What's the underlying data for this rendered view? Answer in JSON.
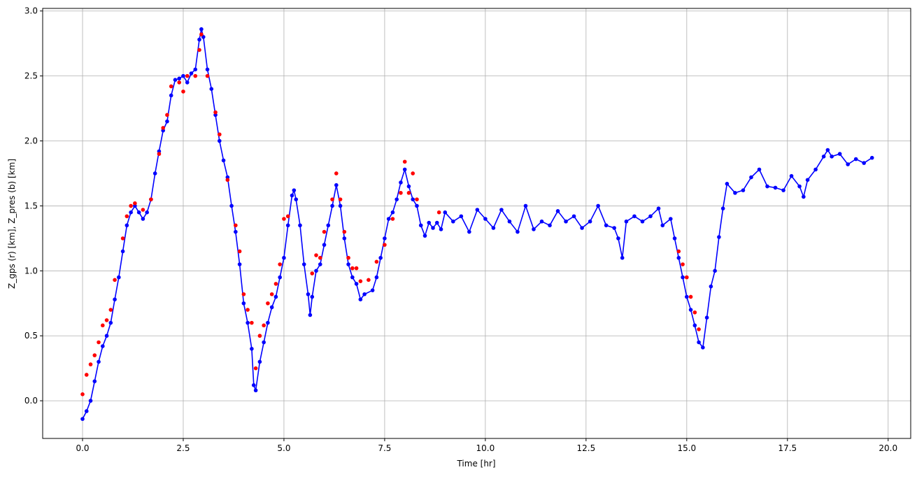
{
  "chart_data": {
    "type": "line",
    "xlabel": "Time [hr]",
    "ylabel": "Z_gps (r) [km], Z_pres (b) [km]",
    "xlim": [
      -0.99,
      20.56
    ],
    "ylim": [
      -0.29,
      3.02
    ],
    "xticks": [
      {
        "value": 0,
        "label": "0.0"
      },
      2.5,
      {
        "value": 5,
        "label": "5.0"
      },
      7.5,
      {
        "value": 10,
        "label": "10.0"
      },
      12.5,
      {
        "value": 15,
        "label": "15.0"
      },
      17.5,
      {
        "value": 20,
        "label": "20.0"
      }
    ],
    "yticks": [
      {
        "value": 0,
        "label": "0.0"
      },
      0.5,
      {
        "value": 1,
        "label": "1.0"
      },
      1.5,
      {
        "value": 2,
        "label": "2.0"
      },
      2.5,
      {
        "value": 3,
        "label": "3.0"
      }
    ],
    "grid": true,
    "series": [
      {
        "color": "#0000ff",
        "linestyle": "solid",
        "marker": "circle",
        "x": [
          0.0,
          0.1,
          0.2,
          0.3,
          0.4,
          0.5,
          0.6,
          0.7,
          0.8,
          0.9,
          1.0,
          1.1,
          1.2,
          1.3,
          1.4,
          1.5,
          1.6,
          1.7,
          1.8,
          1.9,
          2.0,
          2.1,
          2.2,
          2.3,
          2.4,
          2.5,
          2.6,
          2.7,
          2.8,
          2.9,
          2.95,
          3.0,
          3.1,
          3.2,
          3.3,
          3.4,
          3.5,
          3.6,
          3.7,
          3.8,
          3.9,
          4.0,
          4.1,
          4.2,
          4.25,
          4.3,
          4.4,
          4.5,
          4.6,
          4.7,
          4.8,
          4.9,
          5.0,
          5.1,
          5.2,
          5.25,
          5.3,
          5.4,
          5.5,
          5.6,
          5.65,
          5.7,
          5.8,
          5.9,
          6.0,
          6.1,
          6.2,
          6.3,
          6.4,
          6.5,
          6.6,
          6.7,
          6.8,
          6.9,
          7.0,
          7.2,
          7.3,
          7.4,
          7.5,
          7.6,
          7.7,
          7.8,
          7.9,
          8.0,
          8.1,
          8.2,
          8.3,
          8.4,
          8.5,
          8.6,
          8.7,
          8.8,
          8.9,
          9.0,
          9.2,
          9.4,
          9.6,
          9.8,
          10.0,
          10.2,
          10.4,
          10.6,
          10.8,
          11.0,
          11.2,
          11.4,
          11.6,
          11.8,
          12.0,
          12.2,
          12.4,
          12.6,
          12.8,
          13.0,
          13.2,
          13.3,
          13.4,
          13.5,
          13.7,
          13.9,
          14.1,
          14.3,
          14.4,
          14.6,
          14.7,
          14.8,
          14.9,
          15.0,
          15.1,
          15.2,
          15.3,
          15.4,
          15.5,
          15.6,
          15.7,
          15.8,
          15.9,
          16.0,
          16.2,
          16.4,
          16.6,
          16.8,
          17.0,
          17.2,
          17.4,
          17.6,
          17.8,
          17.9,
          18.0,
          18.2,
          18.4,
          18.5,
          18.6,
          18.8,
          19.0,
          19.2,
          19.4,
          19.6
        ],
        "values": [
          -0.14,
          -0.08,
          0.0,
          0.15,
          0.3,
          0.42,
          0.5,
          0.6,
          0.78,
          0.95,
          1.15,
          1.35,
          1.45,
          1.5,
          1.45,
          1.4,
          1.45,
          1.55,
          1.75,
          1.92,
          2.08,
          2.15,
          2.35,
          2.47,
          2.48,
          2.5,
          2.45,
          2.52,
          2.55,
          2.78,
          2.86,
          2.8,
          2.55,
          2.4,
          2.2,
          2.0,
          1.85,
          1.72,
          1.5,
          1.3,
          1.05,
          0.75,
          0.6,
          0.4,
          0.12,
          0.08,
          0.3,
          0.45,
          0.6,
          0.72,
          0.8,
          0.95,
          1.1,
          1.35,
          1.58,
          1.62,
          1.55,
          1.35,
          1.05,
          0.82,
          0.66,
          0.8,
          1.0,
          1.05,
          1.2,
          1.35,
          1.5,
          1.66,
          1.5,
          1.25,
          1.05,
          0.95,
          0.9,
          0.78,
          0.82,
          0.85,
          0.95,
          1.1,
          1.25,
          1.4,
          1.45,
          1.55,
          1.68,
          1.78,
          1.65,
          1.55,
          1.5,
          1.35,
          1.27,
          1.37,
          1.33,
          1.37,
          1.32,
          1.45,
          1.38,
          1.42,
          1.3,
          1.47,
          1.4,
          1.33,
          1.47,
          1.38,
          1.3,
          1.5,
          1.32,
          1.38,
          1.35,
          1.46,
          1.38,
          1.42,
          1.33,
          1.38,
          1.5,
          1.35,
          1.33,
          1.25,
          1.1,
          1.38,
          1.42,
          1.38,
          1.42,
          1.48,
          1.35,
          1.4,
          1.25,
          1.1,
          0.95,
          0.8,
          0.7,
          0.58,
          0.45,
          0.41,
          0.64,
          0.88,
          1.0,
          1.26,
          1.48,
          1.67,
          1.6,
          1.62,
          1.72,
          1.78,
          1.65,
          1.64,
          1.62,
          1.73,
          1.65,
          1.57,
          1.7,
          1.78,
          1.88,
          1.93,
          1.88,
          1.9,
          1.82,
          1.86,
          1.83,
          1.87
        ]
      },
      {
        "color": "#ff0000",
        "linestyle": "none",
        "marker": "circle",
        "x": [
          0.0,
          0.1,
          0.2,
          0.3,
          0.4,
          0.5,
          0.6,
          0.7,
          0.8,
          1.0,
          1.1,
          1.2,
          1.3,
          1.5,
          1.7,
          1.9,
          2.0,
          2.1,
          2.2,
          2.4,
          2.5,
          2.6,
          2.8,
          2.9,
          2.95,
          3.1,
          3.3,
          3.4,
          3.6,
          3.8,
          3.9,
          4.0,
          4.1,
          4.2,
          4.3,
          4.4,
          4.5,
          4.6,
          4.7,
          4.8,
          4.9,
          5.0,
          5.1,
          5.7,
          5.8,
          5.9,
          6.0,
          6.2,
          6.3,
          6.4,
          6.5,
          6.6,
          6.7,
          6.8,
          6.9,
          7.1,
          7.3,
          7.5,
          7.7,
          7.9,
          8.0,
          8.1,
          8.2,
          8.3,
          8.85,
          14.8,
          14.9,
          15.0,
          15.1,
          15.2,
          15.3
        ],
        "values": [
          0.05,
          0.2,
          0.28,
          0.35,
          0.45,
          0.58,
          0.62,
          0.7,
          0.93,
          1.25,
          1.42,
          1.5,
          1.52,
          1.47,
          1.55,
          1.9,
          2.1,
          2.2,
          2.42,
          2.45,
          2.38,
          2.5,
          2.5,
          2.7,
          2.82,
          2.5,
          2.22,
          2.05,
          1.7,
          1.35,
          1.15,
          0.82,
          0.7,
          0.6,
          0.25,
          0.5,
          0.58,
          0.75,
          0.82,
          0.9,
          1.05,
          1.4,
          1.42,
          0.98,
          1.12,
          1.1,
          1.3,
          1.55,
          1.75,
          1.55,
          1.3,
          1.1,
          1.02,
          1.02,
          0.92,
          0.93,
          1.07,
          1.2,
          1.4,
          1.6,
          1.84,
          1.6,
          1.75,
          1.55,
          1.45,
          1.15,
          1.05,
          0.95,
          0.8,
          0.68,
          0.55
        ]
      }
    ]
  }
}
